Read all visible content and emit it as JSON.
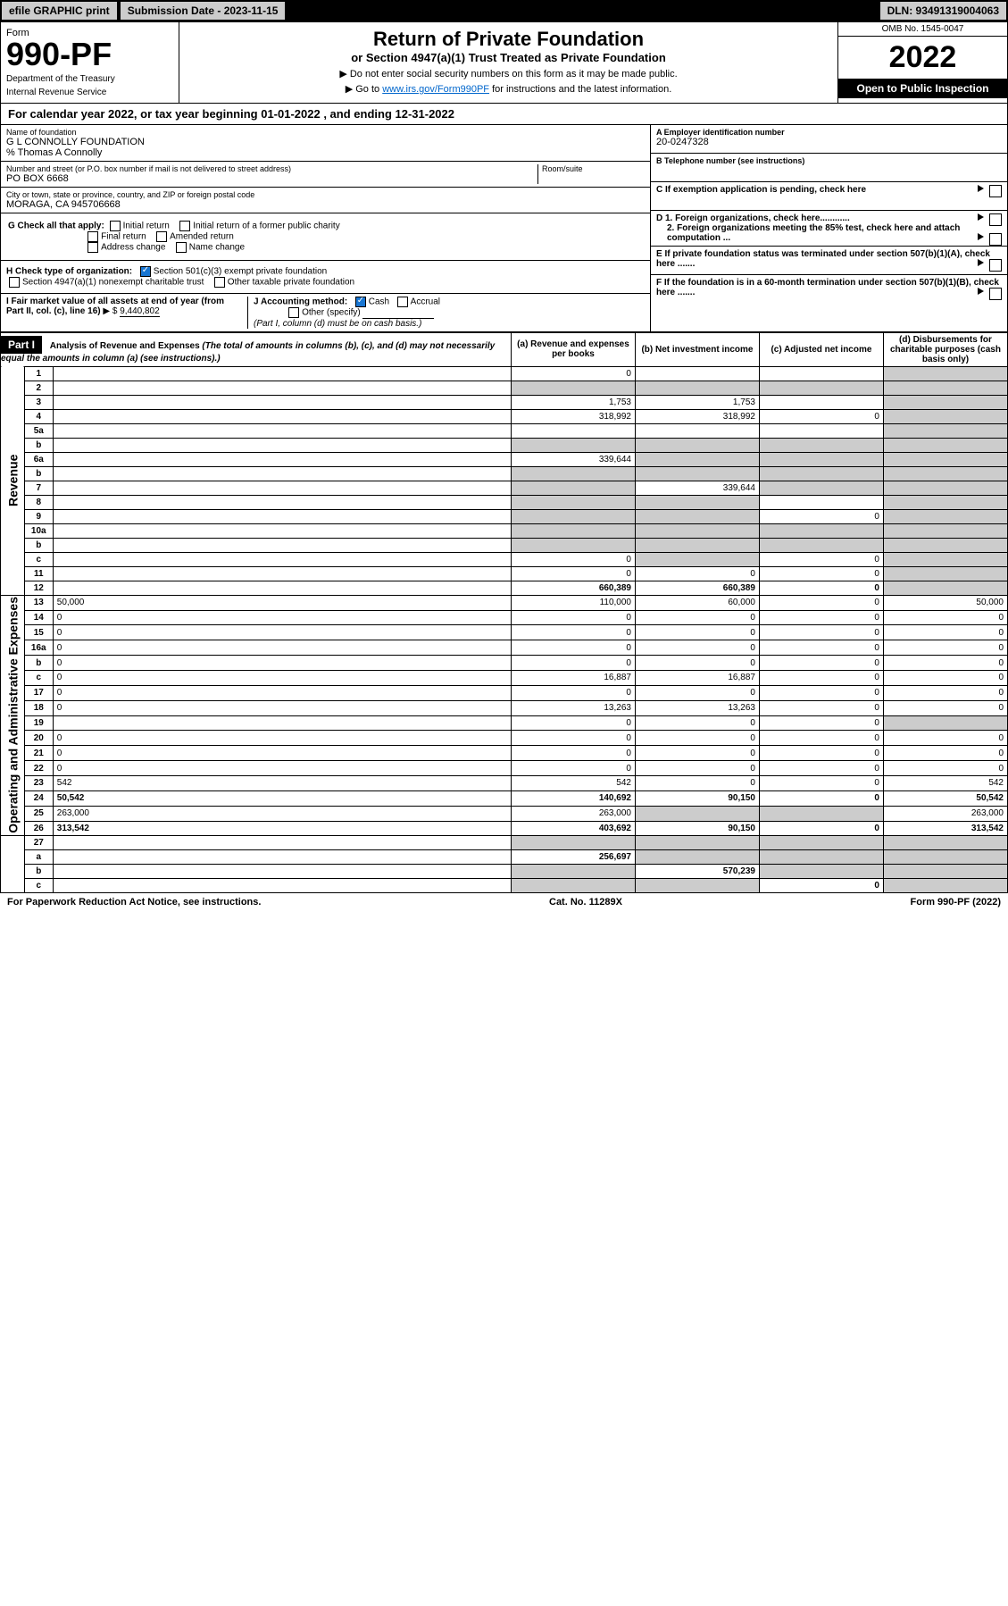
{
  "topbar": {
    "efile": "efile GRAPHIC print",
    "submission_label": "Submission Date - 2023-11-15",
    "dln": "DLN: 93491319004063"
  },
  "header": {
    "form_word": "Form",
    "form_number": "990-PF",
    "dept1": "Department of the Treasury",
    "dept2": "Internal Revenue Service",
    "title": "Return of Private Foundation",
    "subtitle": "or Section 4947(a)(1) Trust Treated as Private Foundation",
    "note1": "▶ Do not enter social security numbers on this form as it may be made public.",
    "note2_pre": "▶ Go to ",
    "note2_link": "www.irs.gov/Form990PF",
    "note2_post": " for instructions and the latest information.",
    "omb": "OMB No. 1545-0047",
    "year": "2022",
    "open": "Open to Public Inspection"
  },
  "calendar": "For calendar year 2022, or tax year beginning 01-01-2022                           , and ending 12-31-2022",
  "foundation": {
    "name_lbl": "Name of foundation",
    "name": "G L CONNOLLY FOUNDATION",
    "careof": "% Thomas A Connolly",
    "addr_lbl": "Number and street (or P.O. box number if mail is not delivered to street address)",
    "addr": "PO BOX 6668",
    "room_lbl": "Room/suite",
    "city_lbl": "City or town, state or province, country, and ZIP or foreign postal code",
    "city": "MORAGA, CA  945706668",
    "ein_lbl": "A Employer identification number",
    "ein": "20-0247328",
    "phone_lbl": "B Telephone number (see instructions)",
    "exempt_lbl": "C If exemption application is pending, check here",
    "d1": "D 1. Foreign organizations, check here............",
    "d2": "2. Foreign organizations meeting the 85% test, check here and attach computation ...",
    "e": "E  If private foundation status was terminated under section 507(b)(1)(A), check here .......",
    "f": "F  If the foundation is in a 60-month termination under section 507(b)(1)(B), check here .......",
    "g_lbl": "G Check all that apply:",
    "g_opts": [
      "Initial return",
      "Initial return of a former public charity",
      "Final return",
      "Amended return",
      "Address change",
      "Name change"
    ],
    "h_lbl": "H Check type of organization:",
    "h_opt1": "Section 501(c)(3) exempt private foundation",
    "h_opt2": "Section 4947(a)(1) nonexempt charitable trust",
    "h_opt3": "Other taxable private foundation",
    "i_lbl": "I Fair market value of all assets at end of year (from Part II, col. (c), line 16)",
    "i_val": "9,440,802",
    "j_lbl": "J Accounting method:",
    "j_cash": "Cash",
    "j_accrual": "Accrual",
    "j_other": "Other (specify)",
    "j_note": "(Part I, column (d) must be on cash basis.)"
  },
  "part1": {
    "label": "Part I",
    "title": "Analysis of Revenue and Expenses",
    "title_note": "(The total of amounts in columns (b), (c), and (d) may not necessarily equal the amounts in column (a) (see instructions).)",
    "col_a": "(a) Revenue and expenses per books",
    "col_b": "(b) Net investment income",
    "col_c": "(c) Adjusted net income",
    "col_d": "(d) Disbursements for charitable purposes (cash basis only)",
    "side_revenue": "Revenue",
    "side_expenses": "Operating and Administrative Expenses"
  },
  "rows": [
    {
      "n": "1",
      "d": "",
      "a": "0",
      "b": "",
      "c": "",
      "gray": [
        "d"
      ]
    },
    {
      "n": "2",
      "d": "",
      "a": "",
      "b": "",
      "c": "",
      "gray": [
        "a",
        "b",
        "c",
        "d"
      ],
      "checked": true
    },
    {
      "n": "3",
      "d": "",
      "a": "1,753",
      "b": "1,753",
      "c": "",
      "gray": [
        "d"
      ]
    },
    {
      "n": "4",
      "d": "",
      "a": "318,992",
      "b": "318,992",
      "c": "0",
      "gray": [
        "d"
      ]
    },
    {
      "n": "5a",
      "d": "",
      "a": "",
      "b": "",
      "c": "",
      "gray": [
        "d"
      ]
    },
    {
      "n": "b",
      "d": "",
      "a": "",
      "b": "",
      "c": "",
      "gray": [
        "a",
        "b",
        "c",
        "d"
      ]
    },
    {
      "n": "6a",
      "d": "",
      "a": "339,644",
      "b": "",
      "c": "",
      "gray": [
        "b",
        "c",
        "d"
      ]
    },
    {
      "n": "b",
      "d": "",
      "a": "",
      "b": "",
      "c": "",
      "gray": [
        "a",
        "b",
        "c",
        "d"
      ]
    },
    {
      "n": "7",
      "d": "",
      "a": "",
      "b": "339,644",
      "c": "",
      "gray": [
        "a",
        "c",
        "d"
      ]
    },
    {
      "n": "8",
      "d": "",
      "a": "",
      "b": "",
      "c": "",
      "gray": [
        "a",
        "b",
        "d"
      ]
    },
    {
      "n": "9",
      "d": "",
      "a": "",
      "b": "",
      "c": "0",
      "gray": [
        "a",
        "b",
        "d"
      ]
    },
    {
      "n": "10a",
      "d": "",
      "a": "",
      "b": "",
      "c": "",
      "gray": [
        "a",
        "b",
        "c",
        "d"
      ]
    },
    {
      "n": "b",
      "d": "",
      "a": "",
      "b": "",
      "c": "",
      "gray": [
        "a",
        "b",
        "c",
        "d"
      ]
    },
    {
      "n": "c",
      "d": "",
      "a": "0",
      "b": "",
      "c": "0",
      "gray": [
        "b",
        "d"
      ]
    },
    {
      "n": "11",
      "d": "",
      "a": "0",
      "b": "0",
      "c": "0",
      "gray": [
        "d"
      ]
    },
    {
      "n": "12",
      "d": "",
      "a": "660,389",
      "b": "660,389",
      "c": "0",
      "gray": [
        "d"
      ],
      "bold": true
    }
  ],
  "rows2": [
    {
      "n": "13",
      "d": "50,000",
      "a": "110,000",
      "b": "60,000",
      "c": "0"
    },
    {
      "n": "14",
      "d": "0",
      "a": "0",
      "b": "0",
      "c": "0"
    },
    {
      "n": "15",
      "d": "0",
      "a": "0",
      "b": "0",
      "c": "0"
    },
    {
      "n": "16a",
      "d": "0",
      "a": "0",
      "b": "0",
      "c": "0"
    },
    {
      "n": "b",
      "d": "0",
      "a": "0",
      "b": "0",
      "c": "0"
    },
    {
      "n": "c",
      "d": "0",
      "a": "16,887",
      "b": "16,887",
      "c": "0"
    },
    {
      "n": "17",
      "d": "0",
      "a": "0",
      "b": "0",
      "c": "0"
    },
    {
      "n": "18",
      "d": "0",
      "a": "13,263",
      "b": "13,263",
      "c": "0"
    },
    {
      "n": "19",
      "d": "",
      "a": "0",
      "b": "0",
      "c": "0",
      "gray": [
        "d"
      ]
    },
    {
      "n": "20",
      "d": "0",
      "a": "0",
      "b": "0",
      "c": "0"
    },
    {
      "n": "21",
      "d": "0",
      "a": "0",
      "b": "0",
      "c": "0"
    },
    {
      "n": "22",
      "d": "0",
      "a": "0",
      "b": "0",
      "c": "0"
    },
    {
      "n": "23",
      "d": "542",
      "a": "542",
      "b": "0",
      "c": "0",
      "icon": true
    },
    {
      "n": "24",
      "d": "50,542",
      "a": "140,692",
      "b": "90,150",
      "c": "0",
      "bold": true
    },
    {
      "n": "25",
      "d": "263,000",
      "a": "263,000",
      "b": "",
      "c": "",
      "gray": [
        "b",
        "c"
      ]
    },
    {
      "n": "26",
      "d": "313,542",
      "a": "403,692",
      "b": "90,150",
      "c": "0",
      "bold": true
    }
  ],
  "rows3": [
    {
      "n": "27",
      "d": "",
      "a": "",
      "b": "",
      "c": "",
      "gray": [
        "a",
        "b",
        "c",
        "d"
      ]
    },
    {
      "n": "a",
      "d": "",
      "a": "256,697",
      "b": "",
      "c": "",
      "gray": [
        "b",
        "c",
        "d"
      ],
      "bold": true
    },
    {
      "n": "b",
      "d": "",
      "a": "",
      "b": "570,239",
      "c": "",
      "gray": [
        "a",
        "c",
        "d"
      ],
      "bold": true
    },
    {
      "n": "c",
      "d": "",
      "a": "",
      "b": "",
      "c": "0",
      "gray": [
        "a",
        "b",
        "d"
      ],
      "bold": true
    }
  ],
  "footer": {
    "left": "For Paperwork Reduction Act Notice, see instructions.",
    "center": "Cat. No. 11289X",
    "right": "Form 990-PF (2022)"
  },
  "colors": {
    "header_black": "#000000",
    "gray_cell": "#cccccc",
    "link": "#0066cc",
    "check_blue": "#1976d2"
  }
}
